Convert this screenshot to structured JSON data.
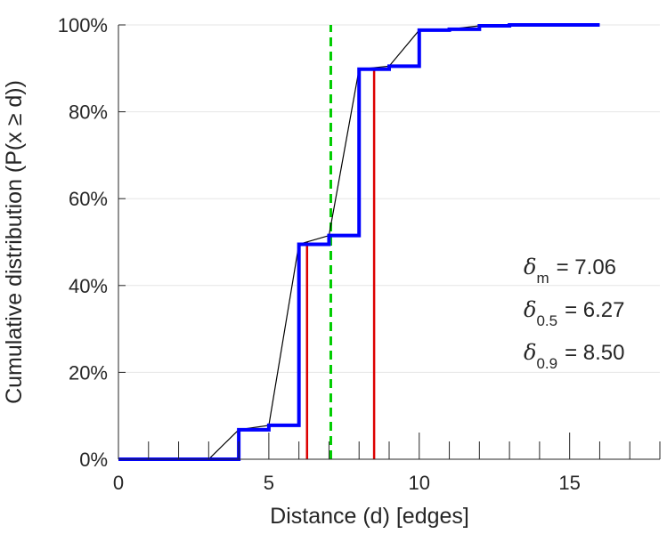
{
  "chart_data": {
    "type": "line",
    "xlabel": "Distance (d) [edges]",
    "ylabel": "Cumulative distribution (P(x ≥ d))",
    "xlim": [
      0,
      18
    ],
    "ylim": [
      0,
      100
    ],
    "x_ticks": [
      0,
      5,
      10,
      15
    ],
    "x_tick_labels": [
      "0",
      "5",
      "10",
      "15"
    ],
    "y_ticks": [
      0,
      20,
      40,
      60,
      80,
      100
    ],
    "y_tick_labels": [
      "0%",
      "20%",
      "40%",
      "60%",
      "80%",
      "100%"
    ],
    "grid": "y-major",
    "colors": {
      "step": "#0000ff",
      "interp": "#000000",
      "quantile": "#dd0000",
      "mean": "#00cc00"
    },
    "series": [
      {
        "style": "step",
        "color": "#0000ff",
        "points": [
          [
            0,
            0
          ],
          [
            2,
            0
          ],
          [
            3,
            0
          ],
          [
            4,
            6.8
          ],
          [
            5,
            7.8
          ],
          [
            6,
            49.5
          ],
          [
            7,
            51.5
          ],
          [
            8,
            89.8
          ],
          [
            9,
            90.5
          ],
          [
            10,
            98.8
          ],
          [
            11,
            99.0
          ],
          [
            12,
            99.8
          ],
          [
            13,
            100
          ],
          [
            16,
            100
          ]
        ]
      },
      {
        "style": "polyline",
        "color": "#000000",
        "points": [
          [
            0,
            0
          ],
          [
            2,
            0
          ],
          [
            3,
            0
          ],
          [
            4,
            6.8
          ],
          [
            5,
            7.8
          ],
          [
            6,
            49.5
          ],
          [
            7,
            51.5
          ],
          [
            8,
            89.8
          ],
          [
            9,
            90.5
          ],
          [
            10,
            98.8
          ],
          [
            11,
            99.0
          ],
          [
            12,
            99.8
          ],
          [
            13,
            100
          ],
          [
            16,
            100
          ]
        ]
      }
    ],
    "vertical_lines": [
      {
        "x": 7.06,
        "style": "dashed",
        "color": "#00cc00",
        "from": 0,
        "to": 100
      },
      {
        "x": 6.27,
        "style": "solid",
        "color": "#dd0000",
        "from": 0,
        "to": 50
      },
      {
        "x": 8.5,
        "style": "solid",
        "color": "#dd0000",
        "from": 0,
        "to": 90
      }
    ],
    "annotations": [
      {
        "symbol": "δ",
        "subscript": "m",
        "text": "= 7.06"
      },
      {
        "symbol": "δ",
        "subscript": "0.5",
        "text": "= 6.27"
      },
      {
        "symbol": "δ",
        "subscript": "0.9",
        "text": "= 8.50"
      }
    ]
  }
}
